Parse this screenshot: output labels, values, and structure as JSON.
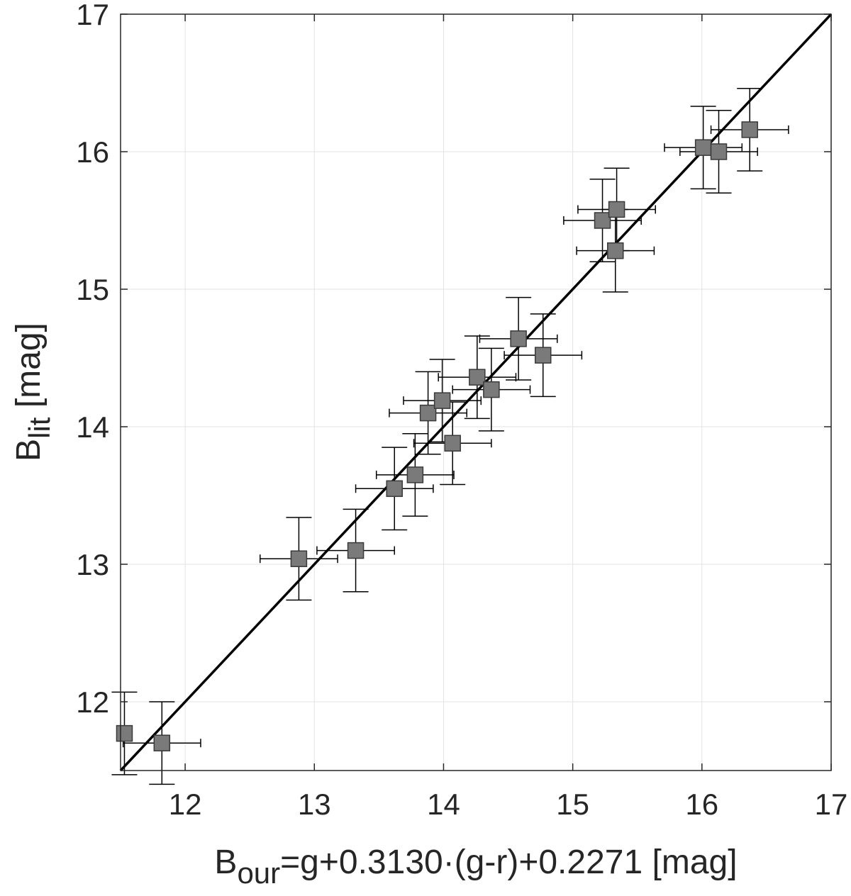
{
  "chart_data": {
    "type": "scatter",
    "title": "",
    "xlabel_parts": {
      "main": "B",
      "subscript": "our",
      "rest": "=g+0.3130·(g-r)+0.2271 [mag]"
    },
    "ylabel_parts": {
      "main": "B",
      "subscript": "lit",
      "rest": " [mag]"
    },
    "xlim": [
      11.5,
      17
    ],
    "ylim": [
      11.5,
      17
    ],
    "xticks": [
      12,
      13,
      14,
      15,
      16,
      17
    ],
    "yticks": [
      12,
      13,
      14,
      15,
      16,
      17
    ],
    "grid": true,
    "marker_color": "#7a7a7a",
    "line_color": "#000000",
    "reference_line": {
      "from": [
        11.5,
        11.5
      ],
      "to": [
        17,
        17
      ]
    },
    "points": [
      {
        "x": 11.53,
        "y": 11.77,
        "xerr": 0.0,
        "yerr": 0.3
      },
      {
        "x": 11.82,
        "y": 11.7,
        "xerr": 0.3,
        "yerr": 0.3
      },
      {
        "x": 12.88,
        "y": 13.04,
        "xerr": 0.3,
        "yerr": 0.3
      },
      {
        "x": 13.32,
        "y": 13.1,
        "xerr": 0.3,
        "yerr": 0.3
      },
      {
        "x": 13.62,
        "y": 13.55,
        "xerr": 0.3,
        "yerr": 0.3
      },
      {
        "x": 13.78,
        "y": 13.65,
        "xerr": 0.3,
        "yerr": 0.3
      },
      {
        "x": 13.88,
        "y": 14.1,
        "xerr": 0.3,
        "yerr": 0.3
      },
      {
        "x": 13.99,
        "y": 14.19,
        "xerr": 0.3,
        "yerr": 0.3
      },
      {
        "x": 14.07,
        "y": 13.88,
        "xerr": 0.3,
        "yerr": 0.3
      },
      {
        "x": 14.26,
        "y": 14.36,
        "xerr": 0.3,
        "yerr": 0.3
      },
      {
        "x": 14.37,
        "y": 14.27,
        "xerr": 0.3,
        "yerr": 0.3
      },
      {
        "x": 14.58,
        "y": 14.64,
        "xerr": 0.3,
        "yerr": 0.3
      },
      {
        "x": 14.77,
        "y": 14.52,
        "xerr": 0.3,
        "yerr": 0.3
      },
      {
        "x": 15.23,
        "y": 15.5,
        "xerr": 0.3,
        "yerr": 0.3
      },
      {
        "x": 15.34,
        "y": 15.58,
        "xerr": 0.3,
        "yerr": 0.3
      },
      {
        "x": 15.33,
        "y": 15.28,
        "xerr": 0.3,
        "yerr": 0.3
      },
      {
        "x": 16.01,
        "y": 16.03,
        "xerr": 0.3,
        "yerr": 0.3
      },
      {
        "x": 16.13,
        "y": 16.0,
        "xerr": 0.3,
        "yerr": 0.3
      },
      {
        "x": 16.37,
        "y": 16.16,
        "xerr": 0.3,
        "yerr": 0.3
      }
    ]
  }
}
